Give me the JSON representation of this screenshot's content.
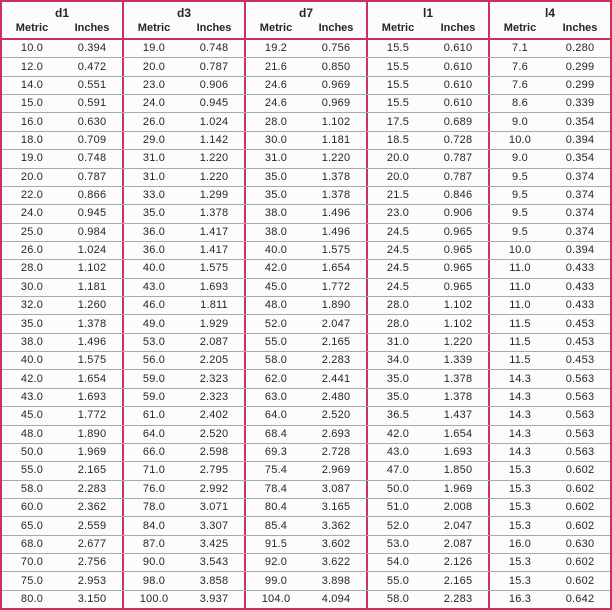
{
  "colors": {
    "border_pink": "#cd3060",
    "row_line": "#a9a9a9",
    "text": "#262626",
    "background": "#fcfcfc"
  },
  "table": {
    "groups": [
      {
        "label": "d1",
        "metric_label": "Metric",
        "inches_label": "Inches"
      },
      {
        "label": "d3",
        "metric_label": "Metric",
        "inches_label": "Inches"
      },
      {
        "label": "d7",
        "metric_label": "Metric",
        "inches_label": "Inches"
      },
      {
        "label": "l1",
        "metric_label": "Metric",
        "inches_label": "Inches"
      },
      {
        "label": "l4",
        "metric_label": "Metric",
        "inches_label": "Inches"
      }
    ],
    "rows": [
      [
        "10.0",
        "0.394",
        "19.0",
        "0.748",
        "19.2",
        "0.756",
        "15.5",
        "0.610",
        "7.1",
        "0.280"
      ],
      [
        "12.0",
        "0.472",
        "20.0",
        "0.787",
        "21.6",
        "0.850",
        "15.5",
        "0.610",
        "7.6",
        "0.299"
      ],
      [
        "14.0",
        "0.551",
        "23.0",
        "0.906",
        "24.6",
        "0.969",
        "15.5",
        "0.610",
        "7.6",
        "0.299"
      ],
      [
        "15.0",
        "0.591",
        "24.0",
        "0.945",
        "24.6",
        "0.969",
        "15.5",
        "0.610",
        "8.6",
        "0.339"
      ],
      [
        "16.0",
        "0.630",
        "26.0",
        "1.024",
        "28.0",
        "1.102",
        "17.5",
        "0.689",
        "9.0",
        "0.354"
      ],
      [
        "18.0",
        "0.709",
        "29.0",
        "1.142",
        "30.0",
        "1.181",
        "18.5",
        "0.728",
        "10.0",
        "0.394"
      ],
      [
        "19.0",
        "0.748",
        "31.0",
        "1.220",
        "31.0",
        "1.220",
        "20.0",
        "0.787",
        "9.0",
        "0.354"
      ],
      [
        "20.0",
        "0.787",
        "31.0",
        "1.220",
        "35.0",
        "1.378",
        "20.0",
        "0.787",
        "9.5",
        "0.374"
      ],
      [
        "22.0",
        "0.866",
        "33.0",
        "1.299",
        "35.0",
        "1.378",
        "21.5",
        "0.846",
        "9.5",
        "0.374"
      ],
      [
        "24.0",
        "0.945",
        "35.0",
        "1.378",
        "38.0",
        "1.496",
        "23.0",
        "0.906",
        "9.5",
        "0.374"
      ],
      [
        "25.0",
        "0.984",
        "36.0",
        "1.417",
        "38.0",
        "1.496",
        "24.5",
        "0.965",
        "9.5",
        "0.374"
      ],
      [
        "26.0",
        "1.024",
        "36.0",
        "1.417",
        "40.0",
        "1.575",
        "24.5",
        "0.965",
        "10.0",
        "0.394"
      ],
      [
        "28.0",
        "1.102",
        "40.0",
        "1.575",
        "42.0",
        "1.654",
        "24.5",
        "0.965",
        "11.0",
        "0.433"
      ],
      [
        "30.0",
        "1.181",
        "43.0",
        "1.693",
        "45.0",
        "1.772",
        "24.5",
        "0.965",
        "11.0",
        "0.433"
      ],
      [
        "32.0",
        "1.260",
        "46.0",
        "1.811",
        "48.0",
        "1.890",
        "28.0",
        "1.102",
        "11.0",
        "0.433"
      ],
      [
        "35.0",
        "1.378",
        "49.0",
        "1.929",
        "52.0",
        "2.047",
        "28.0",
        "1.102",
        "11.5",
        "0.453"
      ],
      [
        "38.0",
        "1.496",
        "53.0",
        "2.087",
        "55.0",
        "2.165",
        "31.0",
        "1.220",
        "11.5",
        "0.453"
      ],
      [
        "40.0",
        "1.575",
        "56.0",
        "2.205",
        "58.0",
        "2.283",
        "34.0",
        "1.339",
        "11.5",
        "0.453"
      ],
      [
        "42.0",
        "1.654",
        "59.0",
        "2.323",
        "62.0",
        "2.441",
        "35.0",
        "1.378",
        "14.3",
        "0.563"
      ],
      [
        "43.0",
        "1.693",
        "59.0",
        "2.323",
        "63.0",
        "2.480",
        "35.0",
        "1.378",
        "14.3",
        "0.563"
      ],
      [
        "45.0",
        "1.772",
        "61.0",
        "2.402",
        "64.0",
        "2.520",
        "36.5",
        "1.437",
        "14.3",
        "0.563"
      ],
      [
        "48.0",
        "1.890",
        "64.0",
        "2.520",
        "68.4",
        "2.693",
        "42.0",
        "1.654",
        "14.3",
        "0.563"
      ],
      [
        "50.0",
        "1.969",
        "66.0",
        "2.598",
        "69.3",
        "2.728",
        "43.0",
        "1.693",
        "14.3",
        "0.563"
      ],
      [
        "55.0",
        "2.165",
        "71.0",
        "2.795",
        "75.4",
        "2.969",
        "47.0",
        "1.850",
        "15.3",
        "0.602"
      ],
      [
        "58.0",
        "2.283",
        "76.0",
        "2.992",
        "78.4",
        "3.087",
        "50.0",
        "1.969",
        "15.3",
        "0.602"
      ],
      [
        "60.0",
        "2.362",
        "78.0",
        "3.071",
        "80.4",
        "3.165",
        "51.0",
        "2.008",
        "15.3",
        "0.602"
      ],
      [
        "65.0",
        "2.559",
        "84.0",
        "3.307",
        "85.4",
        "3.362",
        "52.0",
        "2.047",
        "15.3",
        "0.602"
      ],
      [
        "68.0",
        "2.677",
        "87.0",
        "3.425",
        "91.5",
        "3.602",
        "53.0",
        "2.087",
        "16.0",
        "0.630"
      ],
      [
        "70.0",
        "2.756",
        "90.0",
        "3.543",
        "92.0",
        "3.622",
        "54.0",
        "2.126",
        "15.3",
        "0.602"
      ],
      [
        "75.0",
        "2.953",
        "98.0",
        "3.858",
        "99.0",
        "3.898",
        "55.0",
        "2.165",
        "15.3",
        "0.602"
      ],
      [
        "80.0",
        "3.150",
        "100.0",
        "3.937",
        "104.0",
        "4.094",
        "58.0",
        "2.283",
        "16.3",
        "0.642"
      ]
    ]
  }
}
